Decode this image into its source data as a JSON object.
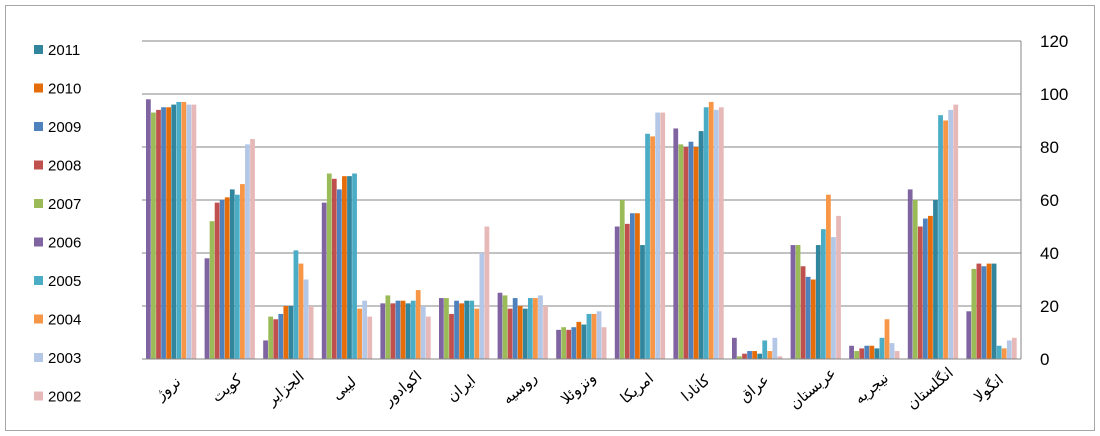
{
  "chart_data": {
    "type": "bar",
    "categories": [
      "نروژ",
      "کویت",
      "الجزایر",
      "لیبی",
      "اکوادور",
      "ایران",
      "روسیه",
      "ونزوئلا",
      "امریکا",
      "کانادا",
      "عراق",
      "عربستان",
      "نیجریه",
      "انگلستان",
      "انگولا"
    ],
    "ylim": [
      0,
      120
    ],
    "yticks": [
      0,
      20,
      40,
      60,
      80,
      100,
      120
    ],
    "grid": true,
    "legend_position": "left",
    "series": [
      {
        "name": "2011",
        "color": "#31859c",
        "values": [
          96,
          64,
          20,
          69,
          21,
          22,
          19,
          13,
          43,
          86,
          2,
          43,
          4,
          60,
          36
        ]
      },
      {
        "name": "2010",
        "color": "#e46c0a",
        "values": [
          95,
          61,
          20,
          69,
          22,
          21,
          20,
          14,
          55,
          80,
          3,
          30,
          5,
          54,
          36
        ]
      },
      {
        "name": "2009",
        "color": "#4f81bd",
        "values": [
          95,
          60,
          17,
          64,
          22,
          22,
          23,
          12,
          55,
          82,
          3,
          31,
          5,
          53,
          35
        ]
      },
      {
        "name": "2008",
        "color": "#c0504d",
        "values": [
          94,
          59,
          15,
          68,
          21,
          17,
          19,
          11,
          51,
          80,
          2,
          35,
          4,
          50,
          36
        ]
      },
      {
        "name": "2007",
        "color": "#9bbb59",
        "values": [
          93,
          52,
          16,
          70,
          24,
          23,
          24,
          12,
          60,
          81,
          1,
          43,
          3,
          60,
          34
        ]
      },
      {
        "name": "2006",
        "color": "#8064a2",
        "values": [
          98,
          38,
          7,
          59,
          21,
          23,
          25,
          11,
          50,
          87,
          8,
          43,
          5,
          64,
          18
        ]
      },
      {
        "name": "2005",
        "color": "#4bacc6",
        "values": [
          97,
          62,
          41,
          70,
          22,
          22,
          23,
          17,
          85,
          95,
          7,
          49,
          8,
          92,
          5
        ]
      },
      {
        "name": "2004",
        "color": "#f79646",
        "values": [
          97,
          66,
          36,
          19,
          26,
          19,
          23,
          17,
          84,
          97,
          3,
          62,
          15,
          90,
          4
        ]
      },
      {
        "name": "2003",
        "color": "#b4c7e7",
        "values": [
          96,
          81,
          30,
          22,
          20,
          40,
          24,
          18,
          93,
          94,
          8,
          46,
          6,
          94,
          7
        ]
      },
      {
        "name": "2002",
        "color": "#e6b9b8",
        "values": [
          96,
          83,
          20,
          16,
          16,
          50,
          20,
          12,
          93,
          95,
          1,
          54,
          3,
          96,
          8
        ]
      }
    ]
  }
}
